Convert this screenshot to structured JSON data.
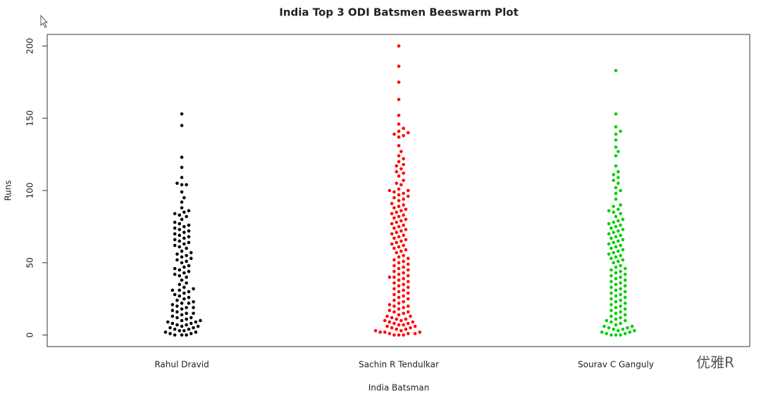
{
  "chart_data": {
    "type": "beeswarm",
    "title": "India Top 3 ODI Batsmen Beeswarm Plot",
    "x_label": "India Batsman",
    "y_label": "Runs",
    "categories": [
      "Rahul Dravid",
      "Sachin R Tendulkar",
      "Sourav C Ganguly"
    ],
    "colors": [
      "#000000",
      "#ff0000",
      "#00cd00"
    ],
    "values": [
      [
        0,
        0,
        0,
        1,
        1,
        2,
        2,
        3,
        3,
        4,
        4,
        5,
        5,
        6,
        6,
        7,
        7,
        8,
        8,
        9,
        9,
        10,
        10,
        11,
        12,
        12,
        13,
        14,
        15,
        15,
        16,
        17,
        18,
        19,
        19,
        20,
        21,
        22,
        22,
        23,
        24,
        25,
        26,
        27,
        28,
        29,
        30,
        31,
        31,
        32,
        33,
        35,
        36,
        38,
        40,
        41,
        42,
        43,
        44,
        45,
        46,
        47,
        48,
        50,
        51,
        52,
        53,
        54,
        55,
        56,
        57,
        58,
        60,
        61,
        62,
        63,
        64,
        65,
        66,
        67,
        68,
        69,
        70,
        71,
        72,
        73,
        74,
        75,
        76,
        77,
        78,
        80,
        82,
        83,
        84,
        85,
        86,
        88,
        92,
        95,
        99,
        104,
        104,
        105,
        109,
        116,
        123,
        145,
        153
      ],
      [
        0,
        0,
        0,
        1,
        1,
        1,
        2,
        2,
        2,
        3,
        3,
        4,
        4,
        5,
        5,
        6,
        6,
        7,
        7,
        8,
        8,
        9,
        9,
        10,
        10,
        11,
        11,
        12,
        13,
        13,
        14,
        15,
        16,
        16,
        17,
        18,
        19,
        20,
        20,
        21,
        22,
        23,
        24,
        25,
        26,
        27,
        28,
        29,
        30,
        31,
        32,
        33,
        34,
        35,
        36,
        37,
        38,
        39,
        40,
        40,
        41,
        42,
        43,
        44,
        45,
        46,
        47,
        48,
        49,
        50,
        51,
        52,
        53,
        54,
        55,
        57,
        58,
        59,
        60,
        61,
        62,
        63,
        64,
        65,
        66,
        67,
        68,
        69,
        70,
        71,
        72,
        73,
        74,
        75,
        76,
        77,
        78,
        79,
        80,
        81,
        82,
        83,
        84,
        85,
        86,
        87,
        88,
        89,
        90,
        91,
        93,
        94,
        95,
        96,
        97,
        98,
        99,
        100,
        100,
        101,
        104,
        105,
        107,
        110,
        112,
        113,
        115,
        117,
        118,
        120,
        122,
        124,
        127,
        131,
        137,
        138,
        139,
        140,
        141,
        143,
        146,
        152,
        163,
        175,
        186,
        200
      ],
      [
        0,
        0,
        0,
        1,
        1,
        2,
        2,
        3,
        3,
        4,
        4,
        5,
        5,
        6,
        6,
        7,
        8,
        9,
        10,
        10,
        11,
        12,
        13,
        14,
        15,
        16,
        17,
        18,
        19,
        20,
        21,
        22,
        23,
        24,
        25,
        26,
        27,
        28,
        29,
        30,
        31,
        32,
        33,
        34,
        35,
        36,
        37,
        38,
        39,
        40,
        41,
        42,
        43,
        44,
        45,
        46,
        47,
        48,
        50,
        51,
        52,
        53,
        54,
        55,
        56,
        57,
        58,
        59,
        60,
        61,
        62,
        63,
        64,
        65,
        66,
        67,
        68,
        69,
        70,
        71,
        72,
        73,
        74,
        75,
        76,
        77,
        78,
        79,
        80,
        82,
        84,
        85,
        86,
        87,
        89,
        90,
        94,
        98,
        100,
        102,
        105,
        107,
        109,
        111,
        113,
        117,
        124,
        127,
        130,
        135,
        139,
        141,
        144,
        153,
        183
      ]
    ],
    "ylim": [
      -8,
      208
    ],
    "yticks": [
      0,
      50,
      100,
      150,
      200
    ],
    "grid": false,
    "watermark": "优雅R"
  }
}
